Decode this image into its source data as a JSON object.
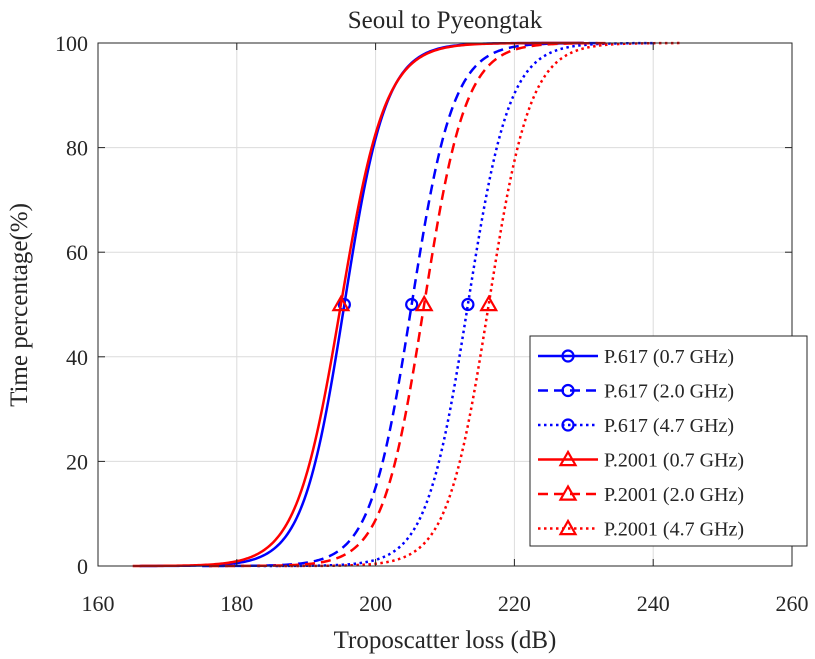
{
  "chart_data": {
    "type": "line",
    "title": "Seoul to Pyeongtak",
    "xlabel": "Troposcatter loss (dB)",
    "ylabel": "Time percentage(%)",
    "xlim": [
      160,
      260
    ],
    "ylim": [
      0,
      100
    ],
    "xticks": [
      "160",
      "180",
      "200",
      "220",
      "240",
      "260"
    ],
    "yticks": [
      "0",
      "20",
      "40",
      "60",
      "80",
      "100"
    ],
    "grid": true,
    "legend_position": "bottom-right",
    "series": [
      {
        "name": "P.617 (0.7 GHz)",
        "color": "#0000ff",
        "line": "solid",
        "marker": "circle",
        "median": 195.5,
        "scale": 3.0,
        "x_start": 166,
        "x_end": 230,
        "marker_x": 195.5
      },
      {
        "name": "P.617 (2.0 GHz)",
        "color": "#0000ff",
        "line": "dashed",
        "marker": "circle",
        "median": 205.2,
        "scale": 3.0,
        "x_start": 175,
        "x_end": 232,
        "marker_x": 205.2
      },
      {
        "name": "P.617 (4.7 GHz)",
        "color": "#0000ff",
        "line": "dotted",
        "marker": "circle",
        "median": 213.3,
        "scale": 3.0,
        "x_start": 183,
        "x_end": 240,
        "marker_x": 213.3
      },
      {
        "name": "P.2001 (0.7 GHz)",
        "color": "#ff0000",
        "line": "solid",
        "marker": "triangle",
        "median": 195.0,
        "scale": 3.2,
        "x_start": 165,
        "x_end": 230,
        "marker_x": 195.0
      },
      {
        "name": "P.2001 (2.0 GHz)",
        "color": "#ff0000",
        "line": "dashed",
        "marker": "triangle",
        "median": 207.0,
        "scale": 3.0,
        "x_start": 176,
        "x_end": 234,
        "marker_x": 207.0
      },
      {
        "name": "P.2001 (4.7 GHz)",
        "color": "#ff0000",
        "line": "dotted",
        "marker": "triangle",
        "median": 216.3,
        "scale": 3.0,
        "x_start": 186,
        "x_end": 244,
        "marker_x": 216.3
      }
    ]
  }
}
